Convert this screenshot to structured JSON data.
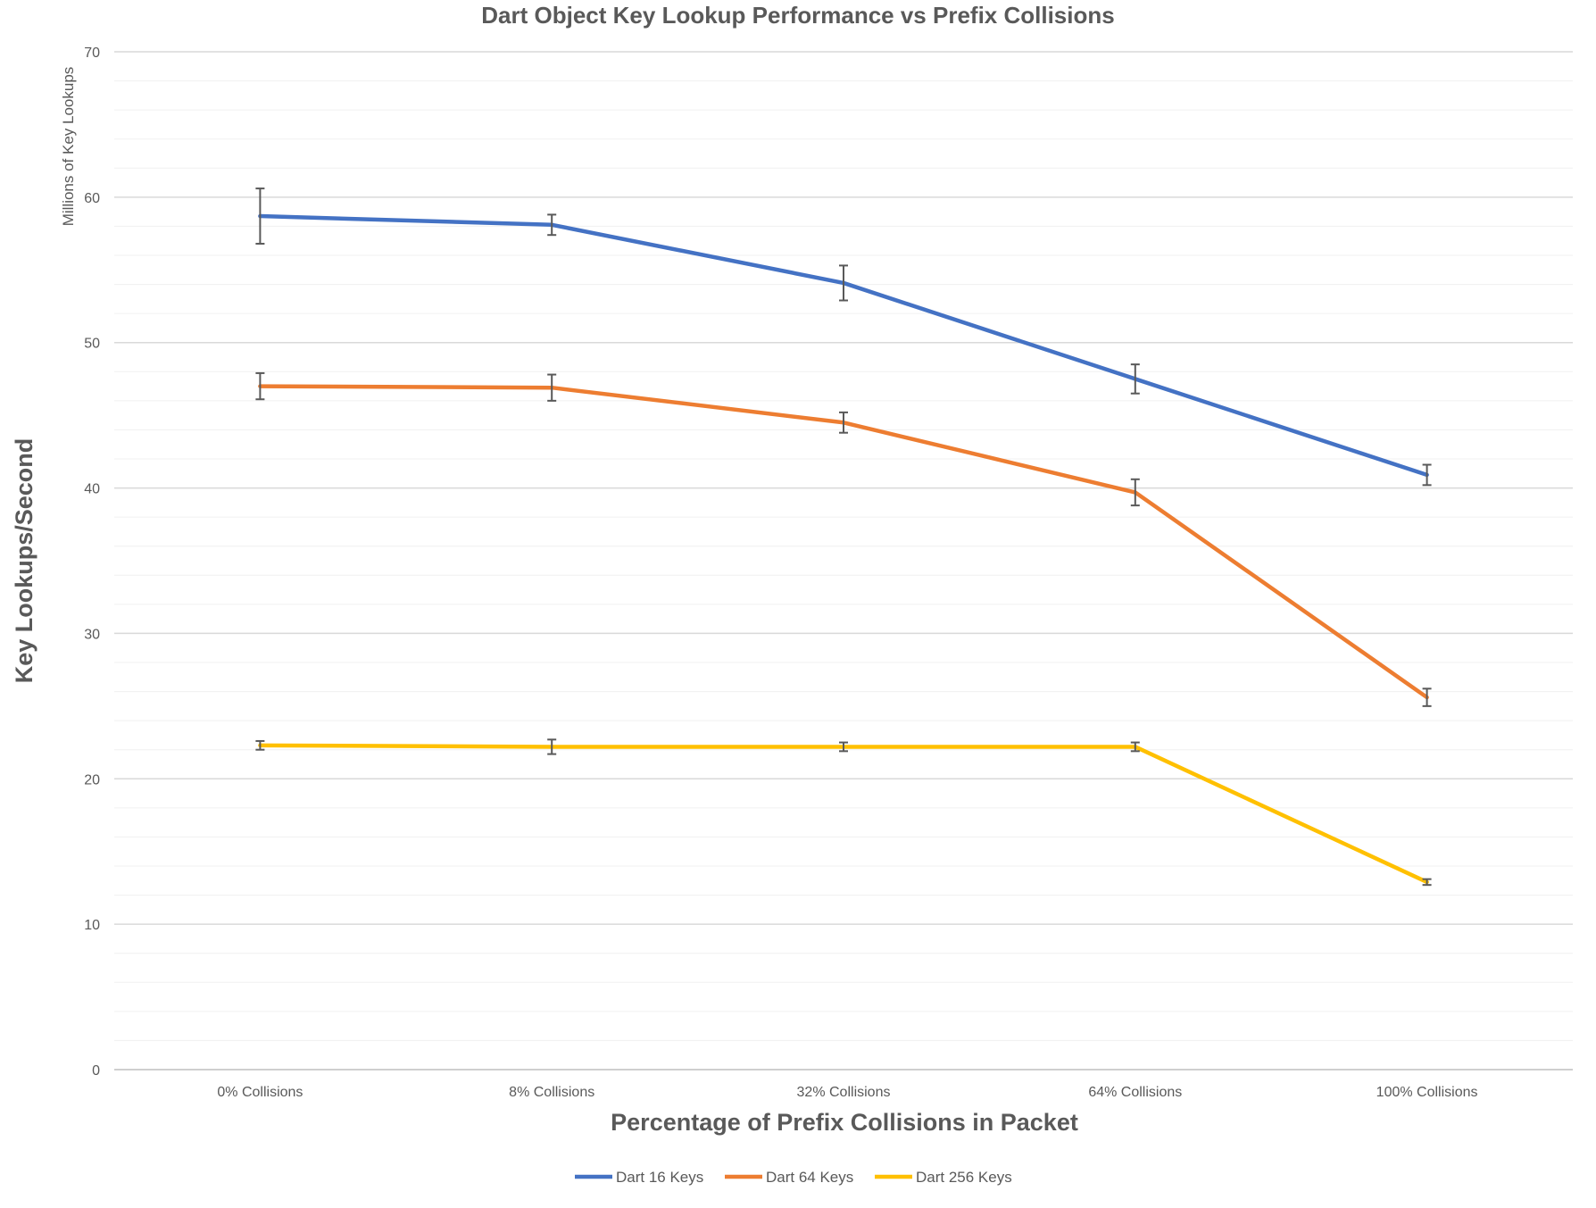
{
  "chart_data": {
    "type": "line",
    "title": "Dart Object Key Lookup Performance vs Prefix Collisions",
    "xlabel": "Percentage of Prefix Collisions in Packet",
    "ylabel": "Key Lookups/Second",
    "y_unit_label": "Millions of Key Lookups",
    "categories": [
      "0% Collisions",
      "8% Collisions",
      "32% Collisions",
      "64% Collisions",
      "100% Collisions"
    ],
    "ylim": [
      0,
      70
    ],
    "y_ticks": [
      0,
      10,
      20,
      30,
      40,
      50,
      60,
      70
    ],
    "y_minor_step": 2,
    "grid": true,
    "legend_position": "bottom",
    "series": [
      {
        "name": "Dart 16 Keys",
        "color": "#4472C4",
        "values": [
          58.7,
          58.1,
          54.1,
          47.5,
          40.9
        ],
        "errors": [
          1.9,
          0.7,
          1.2,
          1.0,
          0.7
        ]
      },
      {
        "name": "Dart 64 Keys",
        "color": "#ED7D31",
        "values": [
          47.0,
          46.9,
          44.5,
          39.7,
          25.6
        ],
        "errors": [
          0.9,
          0.9,
          0.7,
          0.9,
          0.6
        ]
      },
      {
        "name": "Dart 256 Keys",
        "color": "#FFC000",
        "values": [
          22.3,
          22.2,
          22.2,
          22.2,
          12.9
        ],
        "errors": [
          0.3,
          0.5,
          0.3,
          0.3,
          0.2
        ]
      }
    ]
  }
}
